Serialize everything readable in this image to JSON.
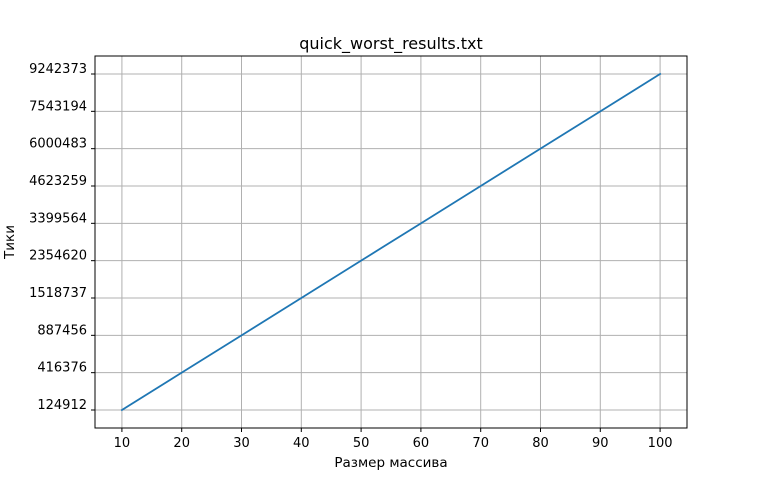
{
  "chart_data": {
    "type": "line",
    "title": "quick_worst_results.txt",
    "xlabel": "Размер массива",
    "ylabel": "Тики",
    "x": [
      10,
      20,
      30,
      40,
      50,
      60,
      70,
      80,
      90,
      100
    ],
    "y_tick_labels": [
      "124912",
      "416376",
      "887456",
      "1518737",
      "2354620",
      "3399564",
      "4623259",
      "6000483",
      "7543194",
      "9242373"
    ],
    "series": [
      {
        "values": [
          124912,
          416376,
          887456,
          1518737,
          2354620,
          3399564,
          4623259,
          6000483,
          7543194,
          9242373
        ],
        "color": "#1f77b4"
      }
    ],
    "y_axis_note": "categorical-spacing: each y value is placed at an equally spaced tick",
    "xlim": [
      5.5,
      104.5
    ],
    "grid": true,
    "grid_color": "#b0b0b0",
    "line_color": "#1f77b4"
  }
}
